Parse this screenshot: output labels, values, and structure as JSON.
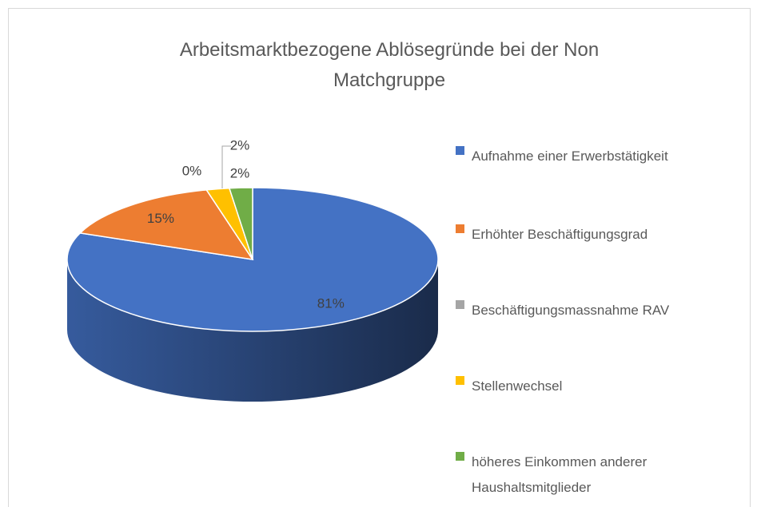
{
  "chart_data": {
    "type": "pie",
    "title": "Arbeitsmarktbezogene Ablösegründe bei der Non Matchgruppe",
    "categories": [
      "Aufnahme einer Erwerbstätigkeit",
      "Erhöhter Beschäftigungsgrad",
      "Beschäftigungsmassnahme RAV",
      "Stellenwechsel",
      "höheres Einkommen anderer Haushaltsmitglieder"
    ],
    "values": [
      81,
      15,
      0,
      2,
      2
    ],
    "value_labels": [
      "81%",
      "15%",
      "0%",
      "2%",
      "2%"
    ],
    "colors": [
      "#4472c4",
      "#ed7d31",
      "#a5a5a5",
      "#ffc000",
      "#70ad47"
    ],
    "legend": "right"
  }
}
